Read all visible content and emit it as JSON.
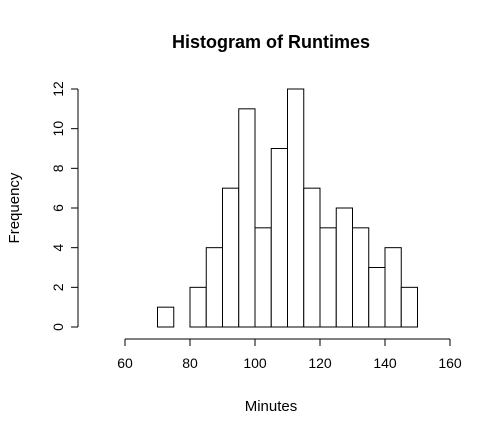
{
  "chart_data": {
    "type": "bar",
    "subtype": "histogram",
    "title": "Histogram of Runtimes",
    "xlabel": "Minutes",
    "ylabel": "Frequency",
    "bin_width": 5,
    "bins": [
      {
        "start": 50,
        "end": 55,
        "count": 0
      },
      {
        "start": 55,
        "end": 60,
        "count": 0
      },
      {
        "start": 60,
        "end": 65,
        "count": 0
      },
      {
        "start": 65,
        "end": 70,
        "count": 0
      },
      {
        "start": 70,
        "end": 75,
        "count": 1
      },
      {
        "start": 75,
        "end": 80,
        "count": 0
      },
      {
        "start": 80,
        "end": 85,
        "count": 2
      },
      {
        "start": 85,
        "end": 90,
        "count": 4
      },
      {
        "start": 90,
        "end": 95,
        "count": 7
      },
      {
        "start": 95,
        "end": 100,
        "count": 11
      },
      {
        "start": 100,
        "end": 105,
        "count": 5
      },
      {
        "start": 105,
        "end": 110,
        "count": 9
      },
      {
        "start": 110,
        "end": 115,
        "count": 12
      },
      {
        "start": 115,
        "end": 120,
        "count": 7
      },
      {
        "start": 120,
        "end": 125,
        "count": 5
      },
      {
        "start": 125,
        "end": 130,
        "count": 6
      },
      {
        "start": 130,
        "end": 135,
        "count": 5
      },
      {
        "start": 135,
        "end": 140,
        "count": 3
      },
      {
        "start": 140,
        "end": 145,
        "count": 4
      },
      {
        "start": 145,
        "end": 150,
        "count": 2
      },
      {
        "start": 150,
        "end": 155,
        "count": 0
      },
      {
        "start": 155,
        "end": 160,
        "count": 0
      }
    ],
    "xlim": [
      50,
      160
    ],
    "ylim": [
      0,
      12
    ],
    "x_ticks": [
      60,
      80,
      100,
      120,
      140,
      160
    ],
    "y_ticks": [
      0,
      2,
      4,
      6,
      8,
      10,
      12
    ],
    "grid": false,
    "bar_fill": "#ffffff",
    "bar_stroke": "#000000"
  }
}
